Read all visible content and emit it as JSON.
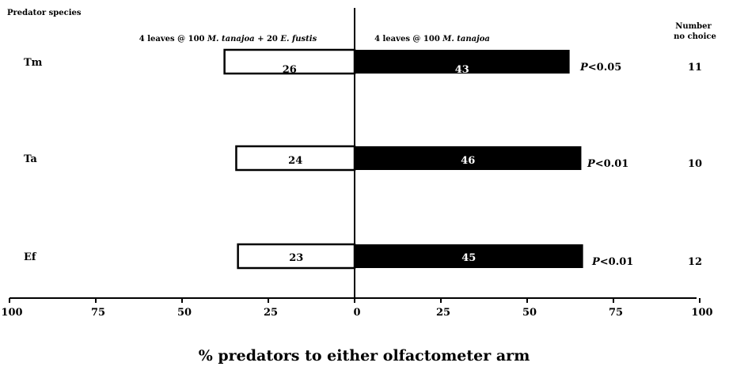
{
  "chart_data": {
    "type": "bar",
    "orientation": "horizontal-diverging",
    "header_left": "Predator species",
    "header_right": [
      "Number",
      "no choice"
    ],
    "left_arm_label": "4 leaves @ 100 M. tanajoa + 20 E. fustis",
    "right_arm_label": "4 leaves @ 100 M. tanajoa",
    "categories": [
      "Tm",
      "Ta",
      "Ef"
    ],
    "series": [
      {
        "name": "4 leaves @ 100 M. tanajoa + 20 E. fustis",
        "side": "left",
        "values": [
          26,
          24,
          23
        ],
        "fill": "#ffffff"
      },
      {
        "name": "4 leaves @ 100 M. tanajoa",
        "side": "right",
        "values": [
          43,
          46,
          45
        ],
        "fill": "#000000"
      }
    ],
    "bar_percent_left": [
      37.7,
      34.3,
      33.8
    ],
    "bar_percent_right": [
      62.3,
      65.7,
      66.2
    ],
    "p_values": [
      "P<0.05",
      "P<0.01",
      "P<0.01"
    ],
    "no_choice": [
      "11",
      "10",
      "12"
    ],
    "x_ticks": [
      "100",
      "75",
      "50",
      "25",
      "0",
      "25",
      "50",
      "75",
      "100"
    ],
    "xlim": [
      -100,
      100
    ],
    "xlabel": "% predators to either olfactometer arm"
  }
}
